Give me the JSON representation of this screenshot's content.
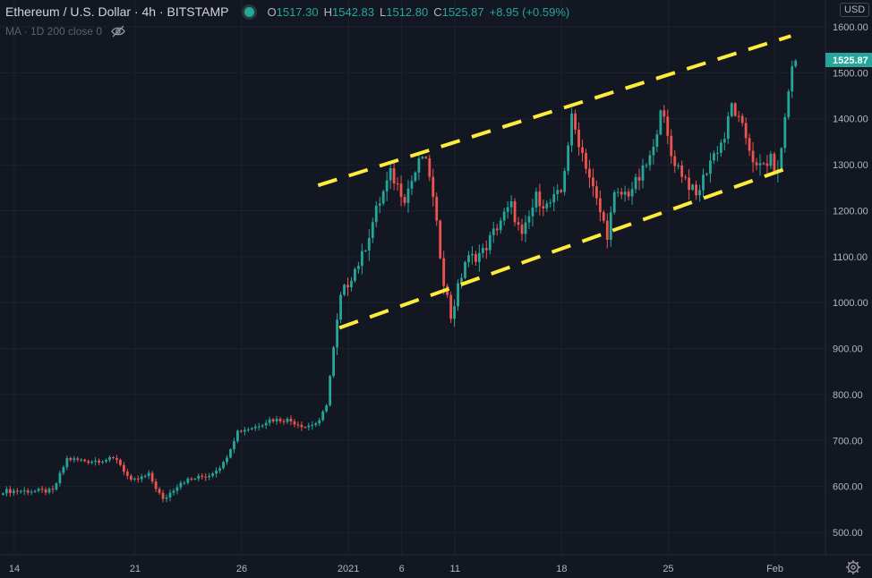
{
  "header": {
    "symbol": "Ethereum / U.S. Dollar · 4h · BITSTAMP",
    "o_label": "O",
    "o_value": "1517.30",
    "h_label": "H",
    "h_value": "1542.83",
    "l_label": "L",
    "l_value": "1512.80",
    "c_label": "C",
    "c_value": "1525.87",
    "change": "+8.95 (+0.59%)"
  },
  "indicator": {
    "label": "MA · 1D 200 close 0"
  },
  "currency": "USD",
  "colors": {
    "up": "#26a69a",
    "down": "#ef5350",
    "trendline": "#ffeb3b",
    "background": "#131722",
    "grid": "#1e222d"
  },
  "icons": [
    "eye-off-icon",
    "gear-icon"
  ],
  "chart_data": {
    "type": "candlestick",
    "y_ticks": [
      "1600.00",
      "1500.00",
      "1400.00",
      "1300.00",
      "1200.00",
      "1100.00",
      "1000.00",
      "900.00",
      "800.00",
      "700.00",
      "600.00",
      "500.00"
    ],
    "x_ticks": [
      "14",
      "21",
      "26",
      "2021",
      "6",
      "11",
      "18",
      "25",
      "Feb"
    ],
    "last_price": "1525.87",
    "ylim": [
      460,
      1640
    ],
    "grid": true,
    "x_tick_index": [
      1,
      35,
      65,
      95,
      110,
      125,
      155,
      185,
      215
    ],
    "ohlc_key_points": [
      [
        0,
        590
      ],
      [
        14,
        590
      ],
      [
        18,
        660
      ],
      [
        24,
        655
      ],
      [
        32,
        660
      ],
      [
        36,
        610
      ],
      [
        41,
        625
      ],
      [
        45,
        570
      ],
      [
        50,
        610
      ],
      [
        58,
        625
      ],
      [
        62,
        650
      ],
      [
        66,
        720
      ],
      [
        71,
        730
      ],
      [
        75,
        745
      ],
      [
        80,
        745
      ],
      [
        85,
        730
      ],
      [
        89,
        740
      ],
      [
        91,
        780
      ],
      [
        93,
        900
      ],
      [
        95,
        1010
      ],
      [
        98,
        1060
      ],
      [
        101,
        1100
      ],
      [
        105,
        1200
      ],
      [
        109,
        1280
      ],
      [
        113,
        1230
      ],
      [
        118,
        1320
      ],
      [
        120,
        1280
      ],
      [
        124,
        1050
      ],
      [
        126,
        970
      ],
      [
        130,
        1090
      ],
      [
        135,
        1110
      ],
      [
        140,
        1180
      ],
      [
        143,
        1210
      ],
      [
        146,
        1140
      ],
      [
        150,
        1230
      ],
      [
        153,
        1210
      ],
      [
        157,
        1240
      ],
      [
        160,
        1400
      ],
      [
        164,
        1300
      ],
      [
        167,
        1220
      ],
      [
        170,
        1150
      ],
      [
        172,
        1230
      ],
      [
        176,
        1240
      ],
      [
        179,
        1270
      ],
      [
        183,
        1330
      ],
      [
        185,
        1430
      ],
      [
        188,
        1320
      ],
      [
        192,
        1270
      ],
      [
        195,
        1230
      ],
      [
        199,
        1310
      ],
      [
        203,
        1360
      ],
      [
        205,
        1430
      ],
      [
        209,
        1360
      ],
      [
        212,
        1290
      ],
      [
        216,
        1310
      ],
      [
        218,
        1280
      ],
      [
        220,
        1400
      ],
      [
        222,
        1520
      ]
    ],
    "trendlines": [
      {
        "from": [
          89,
          1255
        ],
        "to": [
          222,
          1580
        ]
      },
      {
        "from": [
          95,
          945
        ],
        "to": [
          222,
          1295
        ]
      }
    ]
  }
}
